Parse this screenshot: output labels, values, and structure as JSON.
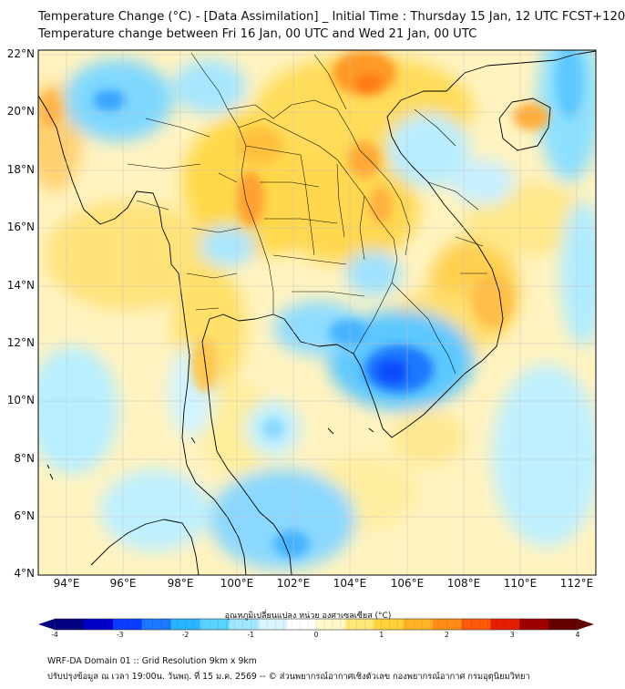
{
  "title_line1": "Temperature Change (°C) - [Data Assimilation] _ Initial Time : Thursday 15 Jan, 12 UTC FCST+120",
  "title_line2": "Temperature change between Fri 16 Jan, 00 UTC and Wed 21 Jan, 00 UTC",
  "lat_labels": [
    "22°N",
    "20°N",
    "18°N",
    "16°N",
    "14°N",
    "12°N",
    "10°N",
    "8°N",
    "6°N",
    "4°N"
  ],
  "lon_labels": [
    "94°E",
    "96°E",
    "98°E",
    "100°E",
    "102°E",
    "104°E",
    "106°E",
    "108°E",
    "110°E",
    "112°E"
  ],
  "colorbar": {
    "title": "อุณหภูมิเปลี่ยนแปลง หน่วย องศาเซลเซียส (°C)",
    "ticks": [
      "-4",
      "-3",
      "-2",
      "-1",
      "0",
      "1",
      "2",
      "3",
      "4"
    ],
    "range": [
      -4,
      4
    ],
    "colors": [
      "#000080",
      "#0000c8",
      "#0a3cff",
      "#1e78ff",
      "#28b4ff",
      "#5ad2ff",
      "#a0e6ff",
      "#d8f4ff",
      "#ffffff",
      "#fff8c8",
      "#ffe87a",
      "#ffd23c",
      "#ffb428",
      "#ff8c14",
      "#ff5a0a",
      "#e61e00",
      "#a00000",
      "#640000"
    ]
  },
  "footer_line1": "WRF-DA Domain 01 :: Grid Resolution 9km x 9km",
  "footer_line2": "ปรับปรุงข้อมูล ณ เวลา 19:00น. วันพฤ. ที่ 15 ม.ค. 2569 -- © ส่วนพยากรณ์อากาศเชิงตัวเลข กองพยากรณ์อากาศ กรมอุตุนิยมวิทยา"
}
